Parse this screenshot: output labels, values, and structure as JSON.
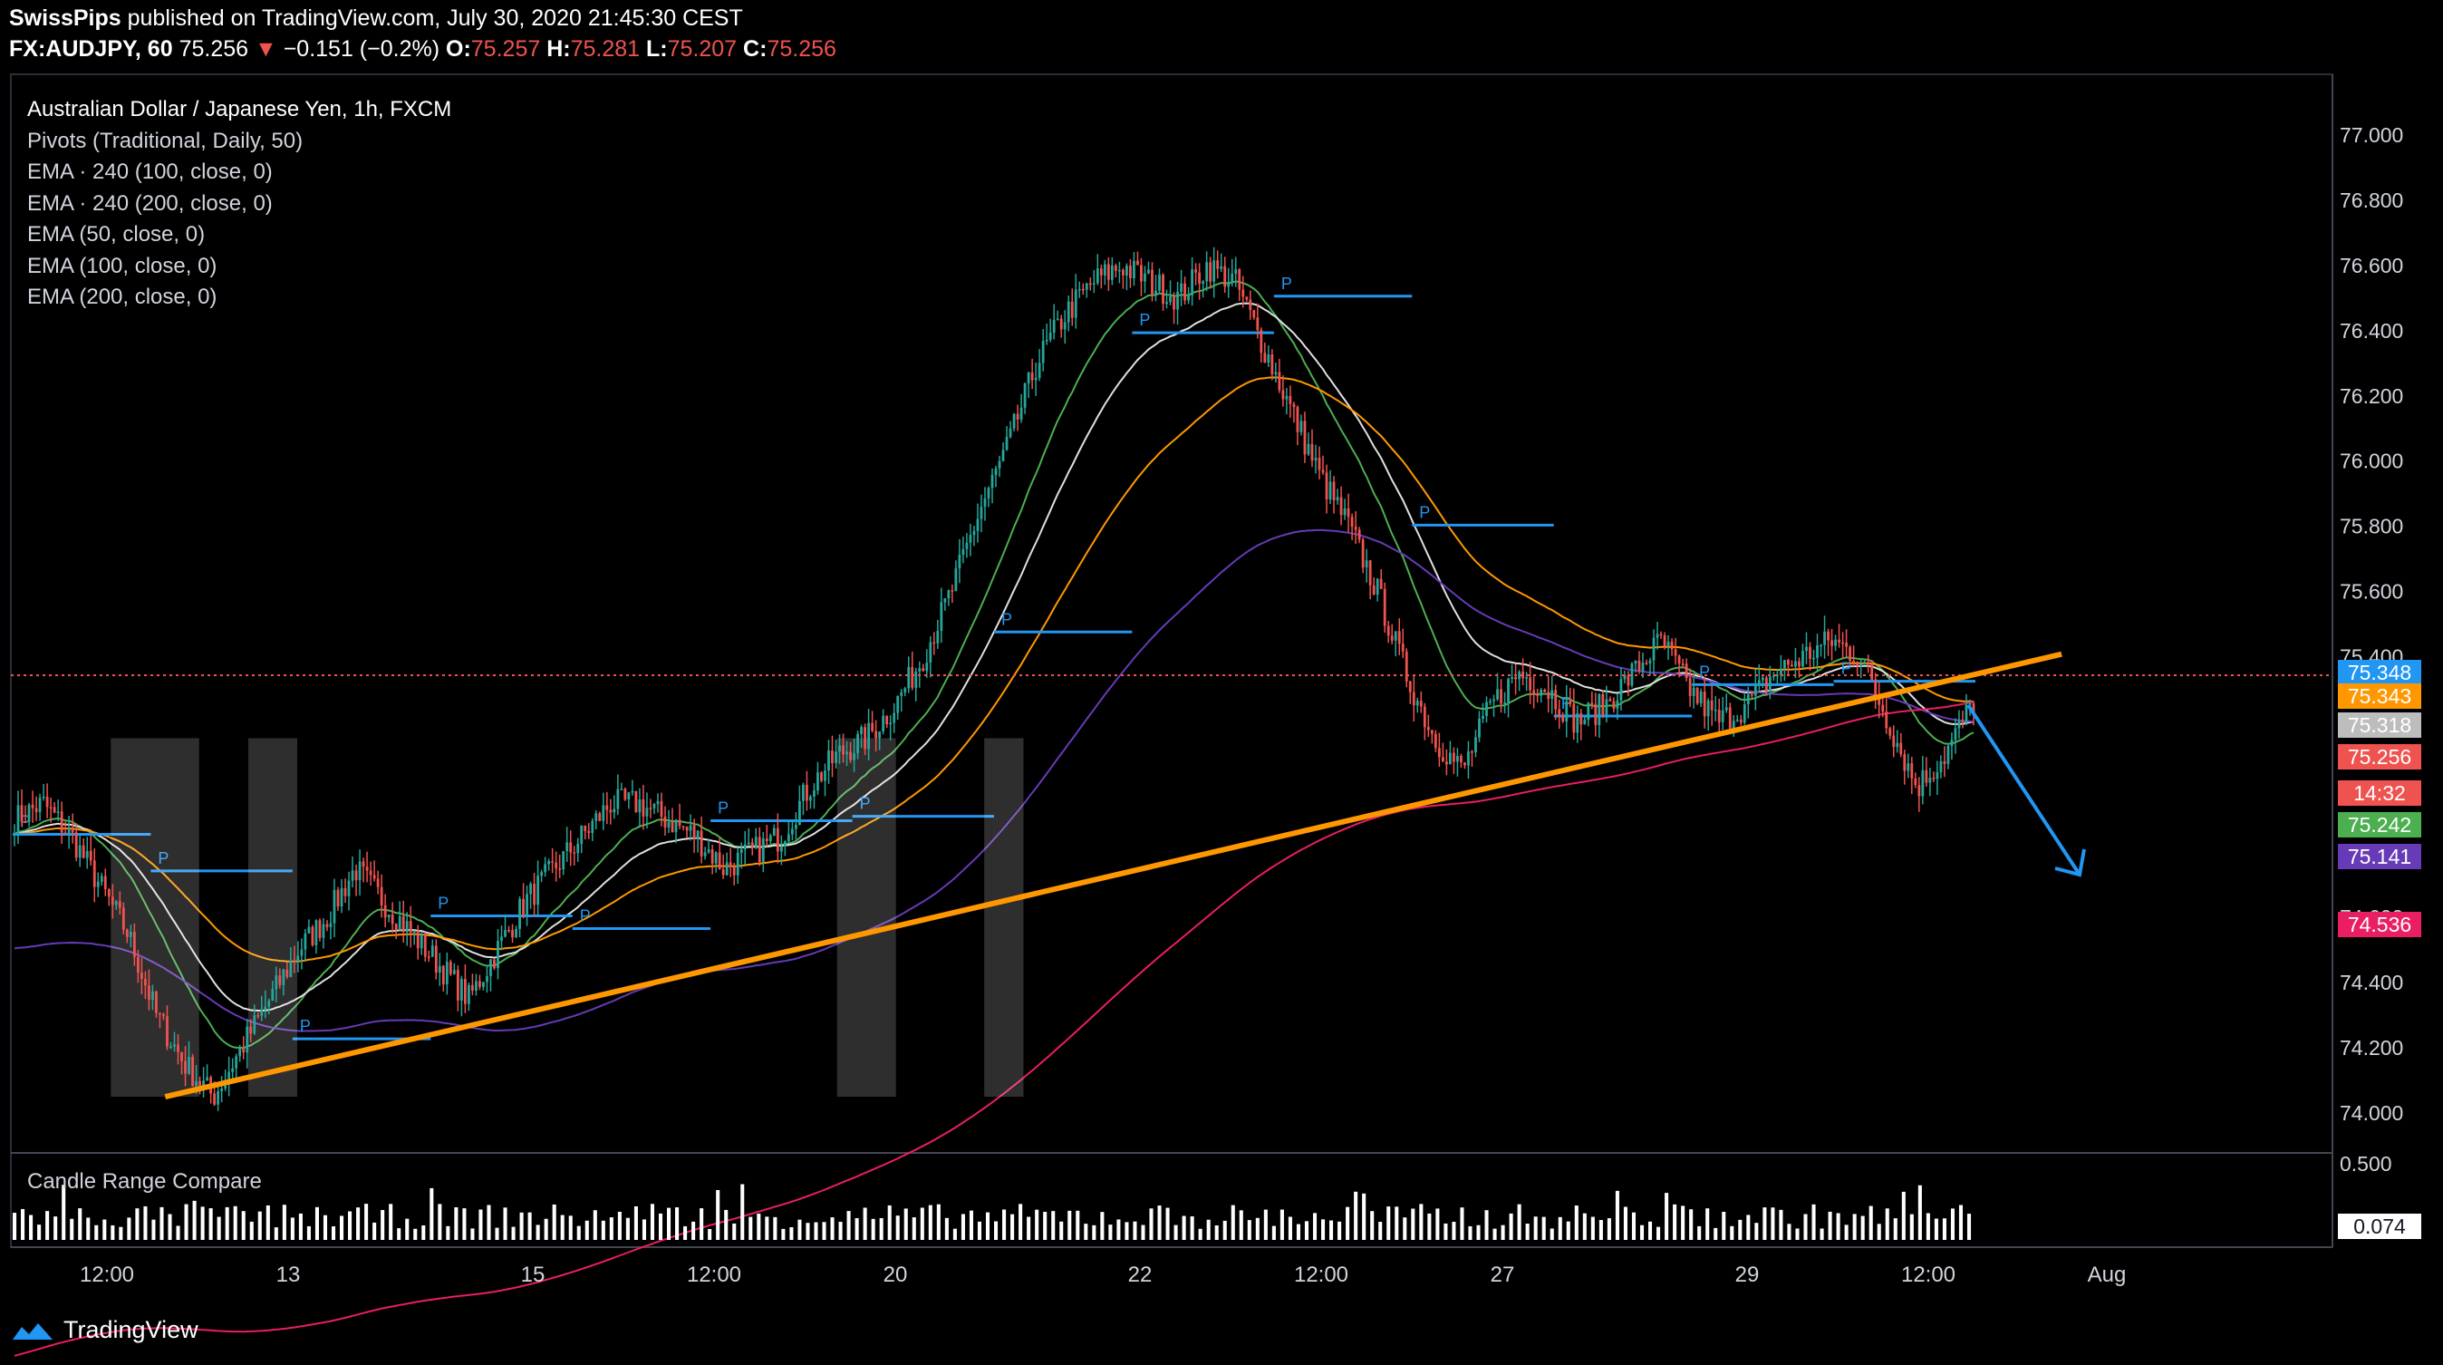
{
  "header": {
    "publisher": "SwissPips",
    "published_text": " published on TradingView.com, July 30, 2020 21:45:30 CEST",
    "symbol": "FX:AUDJPY, 60",
    "last": "75.256",
    "change": "−0.151 (−0.2%)",
    "o_label": "O:",
    "o_value": "75.257",
    "h_label": "H:",
    "h_value": "75.281",
    "l_label": "L:",
    "l_value": "75.207",
    "c_label": "C:",
    "c_value": "75.256"
  },
  "legend": [
    "Australian Dollar / Japanese Yen, 1h, FXCM",
    "Pivots (Traditional, Daily, 50)",
    "EMA · 240 (100, close, 0)",
    "EMA · 240 (200, close, 0)",
    "EMA (50, close, 0)",
    "EMA (100, close, 0)",
    "EMA (200, close, 0)"
  ],
  "indicator": {
    "title": "Candle Range Compare",
    "axis_ticks": [
      "0.500",
      "0.074"
    ],
    "current_value": "0.074",
    "current_color": "#ffffff"
  },
  "branding": {
    "name": "TradingView"
  },
  "colors": {
    "up": "#26a69a",
    "down": "#ef5350",
    "trendline": "#ff9800",
    "pivot": "#2196f3",
    "ema50": "#4caf50",
    "ema100": "#e0e0e0",
    "ema200": "#673ab7",
    "ema240_100": "#ff9800",
    "ema240_200": "#e91e63"
  },
  "chart_data": {
    "type": "candlestick",
    "y_ticks": [
      "77.000",
      "76.800",
      "76.600",
      "76.400",
      "76.200",
      "76.000",
      "75.800",
      "75.600",
      "75.400",
      "74.600",
      "74.400",
      "74.200",
      "74.000"
    ],
    "ylim": [
      73.95,
      77.05
    ],
    "x_ticks": [
      "12:00",
      "13",
      "15",
      "12:00",
      "20",
      "22",
      "12:00",
      "27",
      "29",
      "12:00",
      "Aug"
    ],
    "price_labels": [
      {
        "value": "75.348",
        "color": "#2196f3"
      },
      {
        "value": "75.343",
        "color": "#ff9800"
      },
      {
        "value": "75.318",
        "color": "#bdbdbd"
      },
      {
        "value": "75.256",
        "color": "#ef5350"
      },
      {
        "value": "14:32",
        "color": "#ef5350"
      },
      {
        "value": "75.242",
        "color": "#4caf50"
      },
      {
        "value": "75.141",
        "color": "#673ab7"
      },
      {
        "value": "74.536",
        "color": "#e91e63"
      }
    ],
    "last_price": 75.256,
    "trendline": {
      "x": [
        0.05,
        0.85
      ],
      "y": [
        74.05,
        75.38
      ]
    },
    "close_path": [
      74.9,
      74.95,
      74.85,
      74.7,
      74.55,
      74.3,
      74.15,
      74.05,
      74.2,
      74.35,
      74.5,
      74.6,
      74.75,
      74.65,
      74.55,
      74.45,
      74.35,
      74.5,
      74.65,
      74.75,
      74.85,
      74.95,
      74.95,
      74.9,
      74.85,
      74.75,
      74.8,
      74.85,
      75.0,
      75.1,
      75.15,
      75.25,
      75.4,
      75.6,
      75.85,
      76.05,
      76.3,
      76.45,
      76.55,
      76.6,
      76.55,
      76.5,
      76.6,
      76.55,
      76.35,
      76.15,
      75.95,
      75.8,
      75.6,
      75.35,
      75.15,
      75.05,
      75.25,
      75.35,
      75.3,
      75.2,
      75.25,
      75.35,
      75.45,
      75.3,
      75.2,
      75.25,
      75.35,
      75.4,
      75.45,
      75.4,
      75.2,
      75.0,
      75.1,
      75.26
    ],
    "volume_bars": 240
  }
}
